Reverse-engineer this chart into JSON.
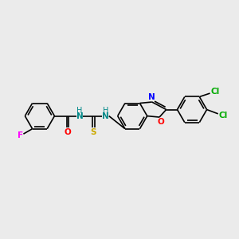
{
  "background_color": "#ebebeb",
  "figsize": [
    3.0,
    3.0
  ],
  "dpi": 100,
  "colors": {
    "black": "#000000",
    "F": "#ff00ff",
    "O": "#ff0000",
    "N": "#0000ff",
    "S": "#ccaa00",
    "NH": "#008888",
    "Cl": "#00aa00"
  },
  "bond_lw": 1.2,
  "font_size": 7.5
}
